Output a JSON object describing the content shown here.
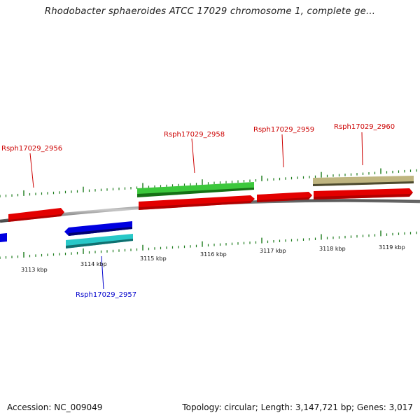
{
  "title": "Rhodobacter sphaeroides ATCC 17029 chromosome 1, complete ge...",
  "footer": {
    "accession": "Accession: NC_009049",
    "summary": "Topology: circular; Length: 3,147,721 bp; Genes: 3,017"
  },
  "colors": {
    "forward_cds": "#e30000",
    "reverse_cds": "#0000e0",
    "forward_rna": "#3cc83c",
    "reverse_rna": "#28c8c8",
    "other": "#bfb580",
    "tick": "#1a7a1a",
    "backbone": "#808080",
    "label_forward": "#cc0000",
    "label_reverse": "#0000cc"
  },
  "kbp_labels": [
    "3113 kbp",
    "3114 kbp",
    "3115 kbp",
    "3116 kbp",
    "3117 kbp",
    "3118 kbp",
    "3119 kbp"
  ],
  "gene_labels": {
    "g2956": "Rsph17029_2956",
    "g2957": "Rsph17029_2957",
    "g2958": "Rsph17029_2958",
    "g2959": "Rsph17029_2959",
    "g2960": "Rsph17029_2960"
  }
}
